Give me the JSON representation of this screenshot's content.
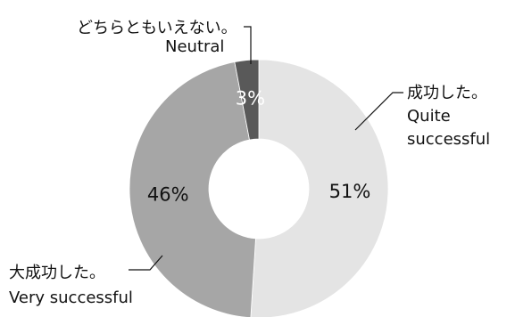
{
  "chart_data": {
    "type": "pie",
    "style": "donut",
    "slices": [
      {
        "value": 51,
        "label_ja": "成功した。",
        "label_en": [
          "Quite",
          "successful"
        ],
        "display": "51%",
        "color": "#e4e4e4",
        "text_color": "#111111"
      },
      {
        "value": 46,
        "label_ja": "大成功した。",
        "label_en": [
          "Very successful"
        ],
        "display": "46%",
        "color": "#a6a6a6",
        "text_color": "#111111"
      },
      {
        "value": 3,
        "label_ja": "どちらともいえない。",
        "label_en": [
          "Neutral"
        ],
        "display": "3%",
        "color": "#595959",
        "text_color": "#ffffff"
      }
    ]
  }
}
